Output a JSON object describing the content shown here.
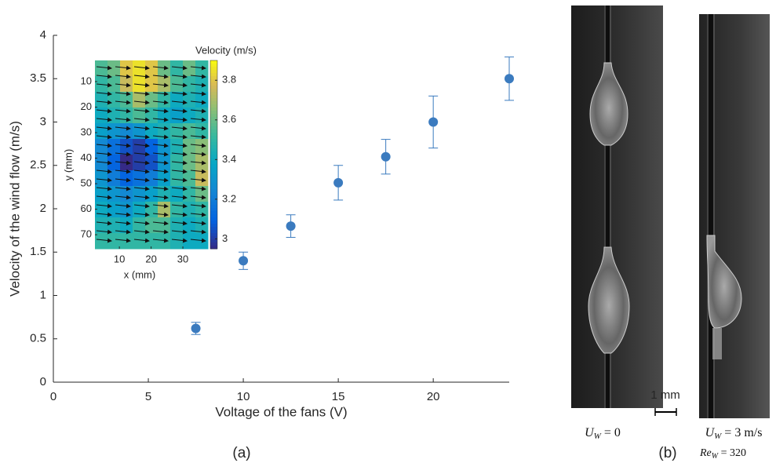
{
  "chart_data": [
    {
      "type": "scatter",
      "xlabel": "Voltage of the fans (V)",
      "ylabel": "Velocity of the wind flow (m/s)",
      "x": [
        7.5,
        10,
        12.5,
        15,
        17.5,
        20,
        24
      ],
      "series": [
        {
          "color": "#3b7bbf",
          "values": [
            0.62,
            1.4,
            1.8,
            2.3,
            2.6,
            3.0,
            3.5
          ],
          "errors": [
            0.07,
            0.1,
            0.13,
            0.2,
            0.2,
            0.3,
            0.25
          ]
        }
      ],
      "xlim": [
        0,
        24
      ],
      "xticks": [
        0,
        5,
        10,
        15,
        20
      ],
      "ylim": [
        0,
        4
      ],
      "yticks": [
        0,
        0.5,
        1,
        1.5,
        2,
        2.5,
        3,
        3.5,
        4
      ]
    },
    {
      "type": "heatmap",
      "title": "Velocity (m/s)",
      "xlabel": "x (mm)",
      "ylabel": "y (mm)",
      "xlim": [
        2.3,
        37.9
      ],
      "xticks": [
        10,
        20,
        30
      ],
      "ylim": [
        1.7,
        75.5
      ],
      "yticks": [
        10,
        20,
        30,
        40,
        50,
        60,
        70
      ],
      "y_inverted": true,
      "clim": [
        2.95,
        3.9
      ],
      "cticks": [
        3,
        3.2,
        3.4,
        3.6,
        3.8
      ],
      "colormap": "parula",
      "values": [
        [
          3.55,
          3.6,
          3.8,
          3.85,
          3.8,
          3.6,
          3.5,
          3.6,
          3.5
        ],
        [
          3.5,
          3.55,
          3.75,
          3.85,
          3.8,
          3.7,
          3.55,
          3.5,
          3.45
        ],
        [
          3.45,
          3.5,
          3.55,
          3.7,
          3.6,
          3.5,
          3.4,
          3.45,
          3.4
        ],
        [
          3.4,
          3.45,
          3.5,
          3.55,
          3.5,
          3.4,
          3.35,
          3.4,
          3.45
        ],
        [
          3.35,
          3.3,
          3.25,
          3.3,
          3.4,
          3.45,
          3.5,
          3.55,
          3.5
        ],
        [
          3.25,
          3.15,
          3.05,
          3.0,
          3.1,
          3.3,
          3.45,
          3.6,
          3.65
        ],
        [
          3.25,
          3.1,
          2.95,
          3.0,
          3.05,
          3.3,
          3.5,
          3.6,
          3.7
        ],
        [
          3.3,
          3.2,
          3.1,
          3.15,
          3.2,
          3.35,
          3.5,
          3.55,
          3.75
        ],
        [
          3.35,
          3.3,
          3.25,
          3.3,
          3.35,
          3.45,
          3.4,
          3.5,
          3.6
        ],
        [
          3.4,
          3.35,
          3.3,
          3.4,
          3.5,
          3.7,
          3.5,
          3.45,
          3.5
        ],
        [
          3.45,
          3.45,
          3.4,
          3.5,
          3.55,
          3.55,
          3.45,
          3.4,
          3.45
        ],
        [
          3.5,
          3.5,
          3.5,
          3.5,
          3.5,
          3.5,
          3.45,
          3.4,
          3.4
        ]
      ]
    }
  ],
  "figure": {
    "panel_a": "(a)",
    "panel_b": "(b)",
    "scale_bar": "1 mm",
    "left_photo": {
      "symbol": "U",
      "subscript": "W",
      "rest": " = 0"
    },
    "right_photo": {
      "symbol": "U",
      "subscript": "W",
      "rest": " = 3 m/s",
      "re_symbol": "Re",
      "re_subscript": "W",
      "re_rest": " = 320"
    }
  }
}
